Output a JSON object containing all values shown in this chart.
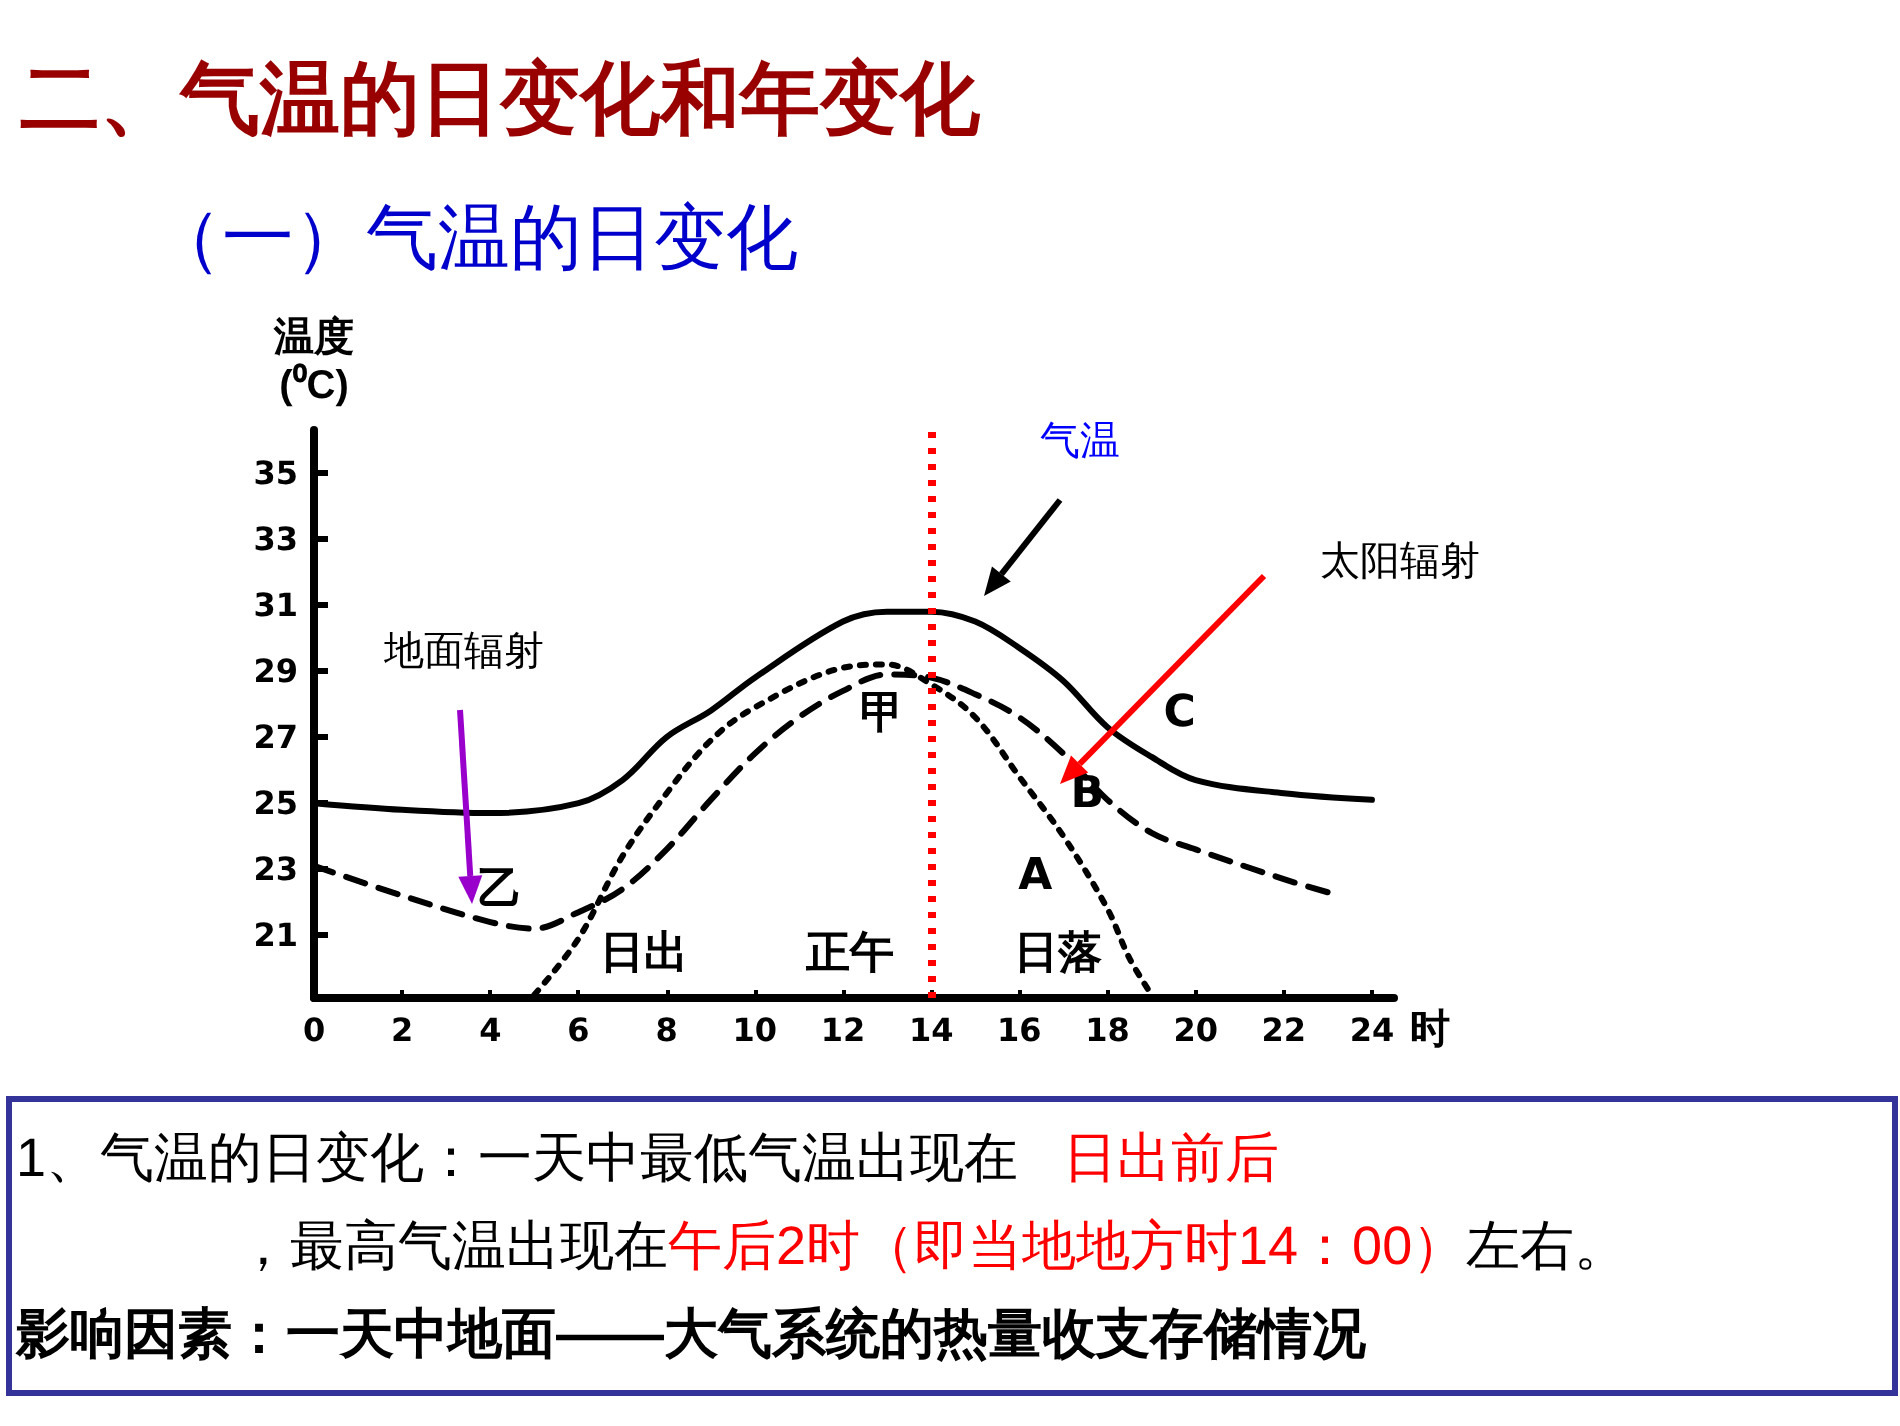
{
  "chart_data": {
    "type": "line",
    "title": "二、气温的日变化和年变化",
    "subtitle": "（一）气温的日变化",
    "xlabel": "时",
    "ylabel": "温度\n(⁰C)",
    "xlim": [
      0,
      24.5
    ],
    "xticks": [
      0,
      2,
      4,
      6,
      8,
      10,
      12,
      14,
      16,
      18,
      20,
      22,
      24
    ],
    "ylim": [
      19.1,
      36.3
    ],
    "yticks": [
      21,
      23,
      25,
      27,
      29,
      31,
      33,
      35
    ],
    "grid": false,
    "legend": false,
    "marker": "none",
    "series": [
      {
        "name": "C",
        "color": "#000000",
        "line_style": "solid",
        "x": [
          0,
          2,
          4,
          6,
          7,
          8,
          9,
          10,
          12,
          13,
          14,
          15,
          16,
          17,
          18,
          19,
          20,
          22,
          24
        ],
        "values": [
          25.0,
          24.8,
          24.7,
          25.0,
          25.7,
          27.0,
          27.8,
          28.8,
          30.5,
          30.8,
          30.8,
          30.5,
          29.7,
          28.7,
          27.3,
          26.4,
          25.7,
          25.3,
          25.1
        ]
      },
      {
        "name": "B",
        "color": "#000000",
        "line_style": "dashed",
        "x": [
          0,
          2,
          4,
          5,
          6,
          7,
          8,
          9,
          10,
          11,
          12,
          13,
          14,
          15,
          16,
          17,
          18,
          19,
          20,
          22,
          23
        ],
        "values": [
          23.1,
          22.2,
          21.4,
          21.2,
          21.7,
          22.4,
          23.6,
          25.1,
          26.5,
          27.6,
          28.4,
          28.9,
          28.8,
          28.3,
          27.6,
          26.5,
          25.1,
          24.1,
          23.6,
          22.7,
          22.3
        ]
      },
      {
        "name": "A",
        "color": "#000000",
        "line_style": "dotted",
        "x": [
          5,
          6,
          7,
          8,
          9,
          10,
          12,
          13,
          14,
          15,
          16,
          17,
          18,
          18.5,
          19
        ],
        "values": [
          19.2,
          20.9,
          23.4,
          25.3,
          26.9,
          27.9,
          29.1,
          29.2,
          28.6,
          27.6,
          25.8,
          24.0,
          21.8,
          20.3,
          19.2
        ]
      }
    ],
    "ref_lines": [
      {
        "axis": "x",
        "value": 14,
        "color": "#ff0000",
        "line_style": "dotted"
      }
    ],
    "annotations": [
      "气温",
      "太阳辐射",
      "地面辐射",
      "甲",
      "乙",
      "日出",
      "正午",
      "日落",
      "1、气温的日变化：一天中最低气温出现在",
      "日出前后",
      "，最高气温出现在",
      "午后2时（即当地地方时14：00）",
      "左右。",
      "影响因素：一天中地面——大气系统的热量收支存储情况"
    ]
  }
}
